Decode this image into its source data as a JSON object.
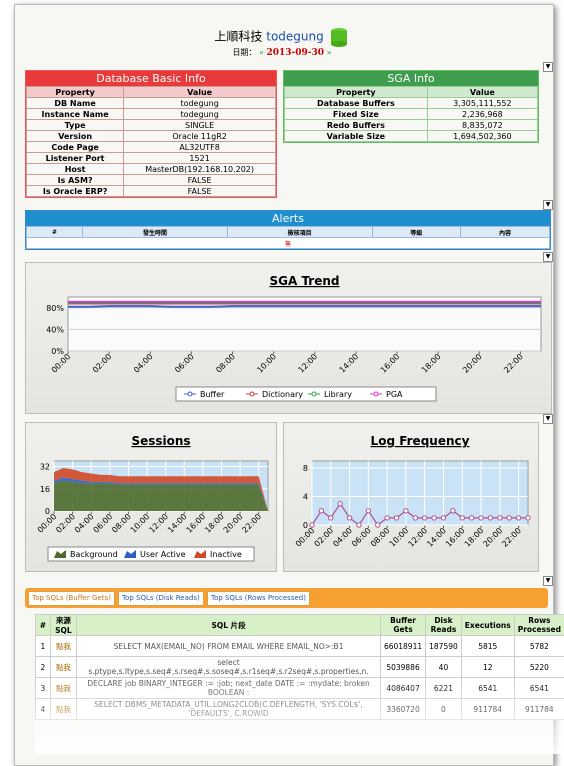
{
  "header": {
    "company": "上順科技",
    "db": "todegung",
    "date_label": "日期：",
    "date": "2013-09-30"
  },
  "db_info": {
    "title": "Database Basic Info",
    "columns": [
      "Property",
      "Value"
    ],
    "rows": [
      [
        "DB Name",
        "todegung"
      ],
      [
        "Instance Name",
        "todegung"
      ],
      [
        "Type",
        "SINGLE"
      ],
      [
        "Version",
        "Oracle 11gR2"
      ],
      [
        "Code Page",
        "AL32UTF8"
      ],
      [
        "Listener Port",
        "1521"
      ],
      [
        "Host",
        "MasterDB(192.168.10.202)"
      ],
      [
        "Is ASM?",
        "FALSE"
      ],
      [
        "Is Oracle ERP?",
        "FALSE"
      ]
    ]
  },
  "sga_info": {
    "title": "SGA Info",
    "columns": [
      "Property",
      "Value"
    ],
    "rows": [
      [
        "Database Buffers",
        "3,305,111,552"
      ],
      [
        "Fixed Size",
        "2,236,968"
      ],
      [
        "Redo Buffers",
        "8,835,072"
      ],
      [
        "Variable Size",
        "1,694,502,360"
      ]
    ]
  },
  "alerts": {
    "title": "Alerts",
    "columns": [
      "#",
      "發生時間",
      "檢核項目",
      "等級",
      "內容"
    ],
    "empty": "無"
  },
  "chart_data": [
    {
      "type": "line",
      "title": "SGA Trend",
      "x": [
        0,
        1,
        2,
        3,
        4,
        5,
        6,
        7,
        8,
        9,
        10,
        11,
        12,
        13,
        14,
        15,
        16,
        17,
        18,
        19,
        20,
        21,
        22,
        23
      ],
      "xlim": [
        0,
        23
      ],
      "xticks": [
        {
          "value": 0,
          "label": "00:00"
        },
        {
          "value": 2,
          "label": "02:00"
        },
        {
          "value": 4,
          "label": "04:00"
        },
        {
          "value": 6,
          "label": "06:00"
        },
        {
          "value": 8,
          "label": "08:00"
        },
        {
          "value": 10,
          "label": "10:00"
        },
        {
          "value": 12,
          "label": "12:00"
        },
        {
          "value": 14,
          "label": "14:00"
        },
        {
          "value": 16,
          "label": "16:00"
        },
        {
          "value": 18,
          "label": "18:00"
        },
        {
          "value": 20,
          "label": "20:00"
        },
        {
          "value": 22,
          "label": "22:00"
        }
      ],
      "ylim": [
        0,
        100
      ],
      "yticks": [
        {
          "value": 0,
          "label": "0%"
        },
        {
          "value": 40,
          "label": "40%"
        },
        {
          "value": 80,
          "label": "80%"
        }
      ],
      "grid": true,
      "markers": false,
      "series": [
        {
          "name": "Buffer",
          "color": "#4060d0",
          "values": [
            82,
            82,
            83,
            83,
            83,
            82,
            82,
            82,
            83,
            83,
            83,
            83,
            83,
            83,
            83,
            83,
            83,
            83,
            83,
            83,
            83,
            83,
            83,
            83
          ]
        },
        {
          "name": "Dictionary",
          "color": "#d04030",
          "values": [
            88,
            88,
            88,
            88,
            88,
            88,
            88,
            88,
            88,
            88,
            88,
            88,
            88,
            88,
            88,
            88,
            88,
            88,
            88,
            88,
            88,
            88,
            88,
            88
          ]
        },
        {
          "name": "Library",
          "color": "#30a040",
          "values": [
            89,
            89,
            89,
            89,
            89,
            89,
            89,
            89,
            89,
            89,
            89,
            89,
            89,
            89,
            89,
            89,
            89,
            89,
            89,
            89,
            89,
            89,
            89,
            89
          ]
        },
        {
          "name": "PGA",
          "color": "#e030d0",
          "values": [
            91,
            91,
            91,
            91,
            91,
            91,
            91,
            91,
            91,
            91,
            91,
            91,
            91,
            91,
            91,
            91,
            91,
            91,
            91,
            91,
            91,
            91,
            91,
            91
          ]
        }
      ]
    },
    {
      "type": "stacked_area",
      "title": "Sessions",
      "x": [
        0,
        1,
        2,
        3,
        4,
        5,
        6,
        7,
        8,
        9,
        10,
        11,
        12,
        13,
        14,
        15,
        16,
        17,
        18,
        19,
        20,
        21,
        22,
        23
      ],
      "xlim": [
        0,
        23
      ],
      "xticks": [
        {
          "value": 0,
          "label": "00:00"
        },
        {
          "value": 2,
          "label": "02:00"
        },
        {
          "value": 4,
          "label": "04:00"
        },
        {
          "value": 6,
          "label": "06:00"
        },
        {
          "value": 8,
          "label": "08:00"
        },
        {
          "value": 10,
          "label": "10:00"
        },
        {
          "value": 12,
          "label": "12:00"
        },
        {
          "value": 14,
          "label": "14:00"
        },
        {
          "value": 16,
          "label": "16:00"
        },
        {
          "value": 18,
          "label": "18:00"
        },
        {
          "value": 20,
          "label": "20:00"
        },
        {
          "value": 22,
          "label": "22:00"
        }
      ],
      "ylim": [
        0,
        36
      ],
      "yticks": [
        0,
        16,
        32
      ],
      "grid": true,
      "series": [
        {
          "name": "Background",
          "color": "#4f6b2c",
          "values": [
            20,
            22,
            21,
            20,
            20,
            20,
            20,
            19,
            19,
            19,
            19,
            19,
            19,
            19,
            19,
            19,
            19,
            19,
            19,
            19,
            19,
            19,
            19,
            0
          ]
        },
        {
          "name": "User Active",
          "color": "#2f5fc0",
          "values": [
            2,
            2,
            2,
            2,
            1,
            1,
            1,
            1,
            1,
            1,
            1,
            1,
            1,
            1,
            1,
            1,
            1,
            1,
            1,
            1,
            1,
            1,
            1,
            0
          ]
        },
        {
          "name": "Inactive",
          "color": "#d04a28",
          "values": [
            6,
            7,
            7,
            6,
            6,
            5,
            5,
            5,
            5,
            5,
            5,
            5,
            5,
            5,
            5,
            5,
            5,
            5,
            5,
            5,
            5,
            5,
            5,
            0
          ]
        }
      ]
    },
    {
      "type": "line",
      "title": "Log Frequency",
      "x": [
        0,
        1,
        2,
        3,
        4,
        5,
        6,
        7,
        8,
        9,
        10,
        11,
        12,
        13,
        14,
        15,
        16,
        17,
        18,
        19,
        20,
        21,
        22,
        23
      ],
      "xlim": [
        0,
        23
      ],
      "xticks": [
        {
          "value": 0,
          "label": "00:00"
        },
        {
          "value": 2,
          "label": "02:00"
        },
        {
          "value": 4,
          "label": "04:00"
        },
        {
          "value": 6,
          "label": "06:00"
        },
        {
          "value": 8,
          "label": "08:00"
        },
        {
          "value": 10,
          "label": "10:00"
        },
        {
          "value": 12,
          "label": "12:00"
        },
        {
          "value": 14,
          "label": "14:00"
        },
        {
          "value": 16,
          "label": "16:00"
        },
        {
          "value": 18,
          "label": "18:00"
        },
        {
          "value": 20,
          "label": "20:00"
        },
        {
          "value": 22,
          "label": "22:00"
        }
      ],
      "ylim": [
        0,
        9
      ],
      "yticks": [
        0,
        4,
        8
      ],
      "grid": true,
      "markers": true,
      "series": [
        {
          "color": "#b05090",
          "values": [
            0,
            2,
            1,
            3,
            1,
            0,
            2,
            0,
            1,
            1,
            2,
            1,
            1,
            1,
            1,
            2,
            1,
            1,
            1,
            1,
            1,
            1,
            1,
            1
          ]
        }
      ]
    }
  ],
  "top_sql": {
    "tabs": [
      "Top SQLs (Buffer Gets)",
      "Top SQLs (Disk Reads)",
      "Top SQLs (Rows Processed)"
    ],
    "columns": [
      "#",
      "來源SQL",
      "SQL 片段",
      "Buffer Gets",
      "Disk Reads",
      "Executions",
      "Rows Processed"
    ],
    "rows": [
      [
        1,
        "點我",
        "SELECT MAX(EMAIL_NO) FROM EMAIL WHERE EMAIL_NO>:B1",
        66018911,
        187590,
        5815,
        5782
      ],
      [
        2,
        "點我",
        "select s.ptype,s.ltype,s.seq#,s.rseq#,s.soseq#,s.r1seq#,s.r2seq#,s.properties,n.",
        5039886,
        40,
        12,
        5220
      ],
      [
        3,
        "點我",
        "DECLARE job BINARY_INTEGER := :job; next_date DATE := :mydate; broken BOOLEAN :",
        4086407,
        6221,
        6541,
        6541
      ],
      [
        4,
        "點我",
        "SELECT DBMS_METADATA_UTIL.LONG2CLOB(C.DEFLENGTH, 'SYS.COL$', 'DEFAULTS', C.ROWID",
        3360720,
        0,
        911784,
        911784
      ]
    ]
  }
}
